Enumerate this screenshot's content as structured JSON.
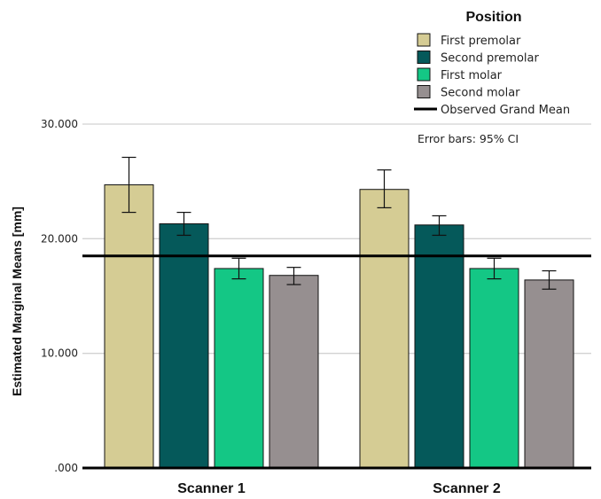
{
  "chart_data": {
    "type": "bar",
    "y_title": "Estimated Marginal Means [mm]",
    "categories": [
      "Scanner 1",
      "Scanner 2"
    ],
    "ylim": [
      0,
      30
    ],
    "y_ticks": [
      0,
      10,
      20,
      30
    ],
    "y_tick_labels": [
      ".000",
      "10.000",
      "20.000",
      "30.000"
    ],
    "legend_title": "Position",
    "legend_position": "top-right",
    "series": [
      {
        "name": "First premolar",
        "color": "#d5cc94",
        "values": [
          24.7,
          24.3
        ],
        "ci_low": [
          22.3,
          22.7
        ],
        "ci_high": [
          27.1,
          26.0
        ]
      },
      {
        "name": "Second premolar",
        "color": "#05595a",
        "values": [
          21.3,
          21.2
        ],
        "ci_low": [
          20.3,
          20.3
        ],
        "ci_high": [
          22.3,
          22.0
        ]
      },
      {
        "name": "First molar",
        "color": "#14c785",
        "values": [
          17.4,
          17.4
        ],
        "ci_low": [
          16.5,
          16.5
        ],
        "ci_high": [
          18.3,
          18.3
        ]
      },
      {
        "name": "Second molar",
        "color": "#968f90",
        "values": [
          16.8,
          16.4
        ],
        "ci_low": [
          16.0,
          15.6
        ],
        "ci_high": [
          17.5,
          17.2
        ]
      }
    ],
    "reference_line": {
      "name": "Observed Grand Mean",
      "value": 18.5
    },
    "annotation": "Error bars: 95% CI",
    "grid": true
  }
}
